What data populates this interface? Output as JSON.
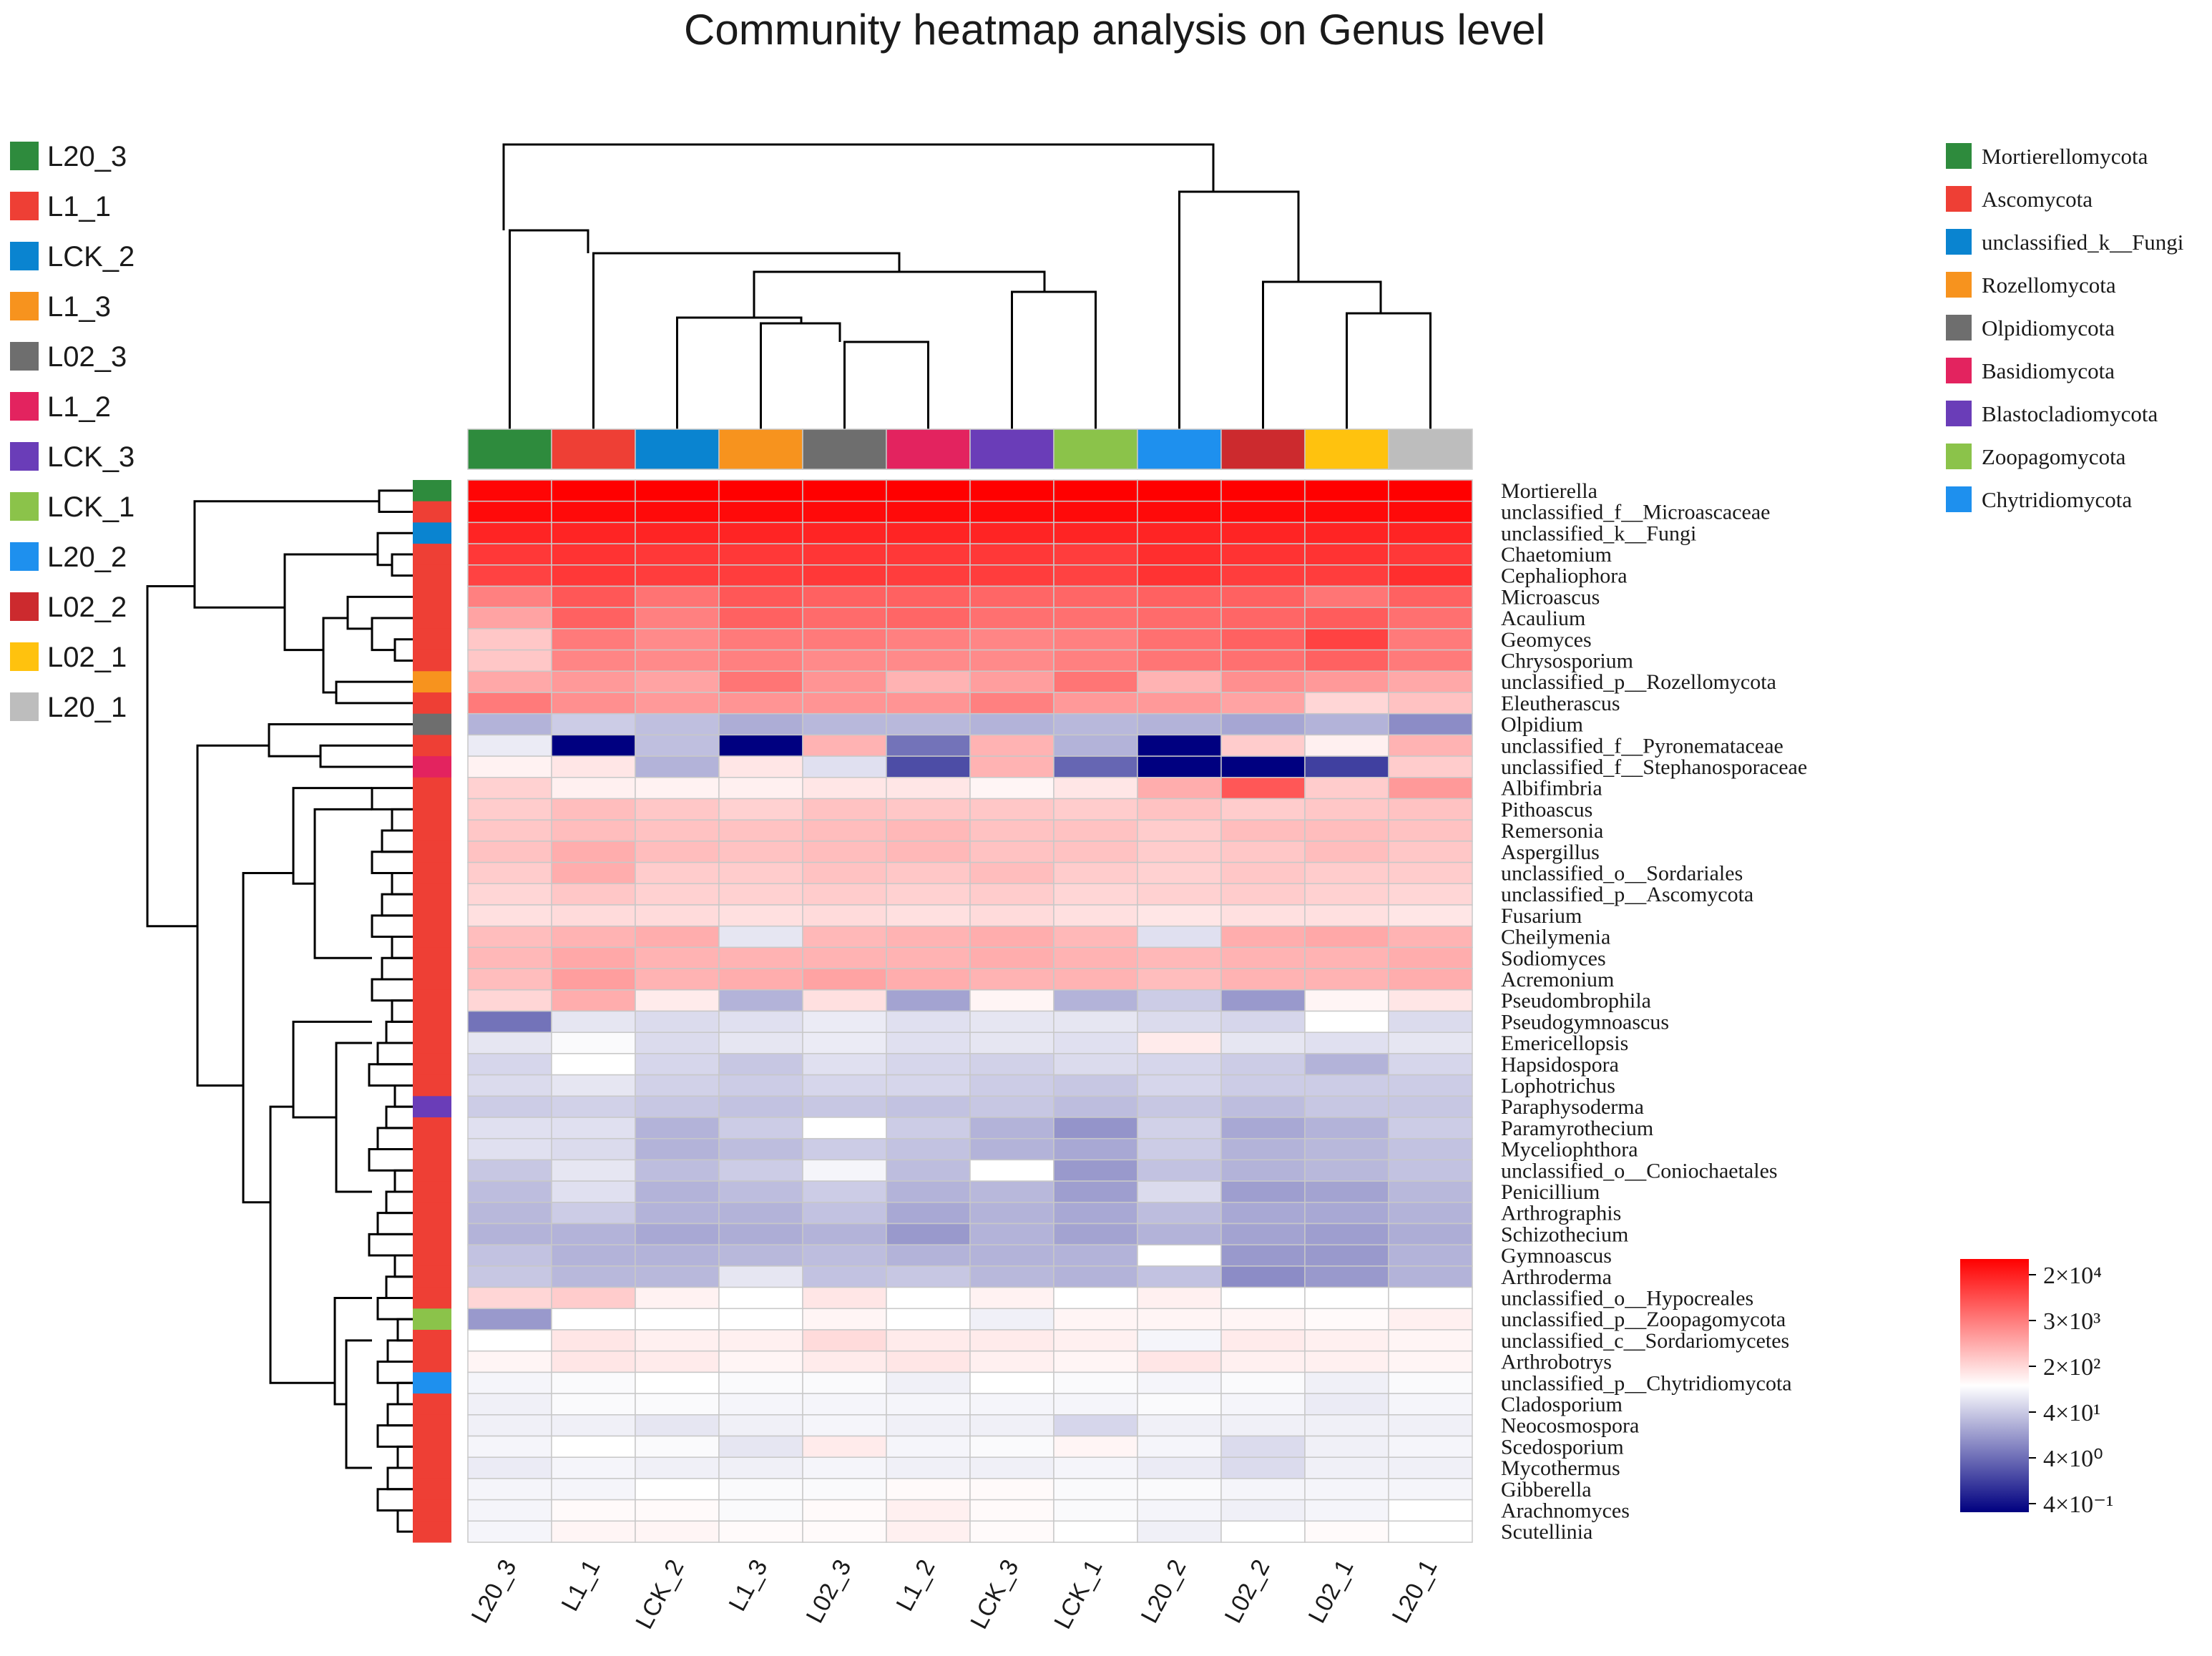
{
  "chart_data": {
    "type": "heatmap",
    "title": "Community heatmap analysis on Genus level",
    "samples": [
      "L20_3",
      "L1_1",
      "LCK_2",
      "L1_3",
      "L02_3",
      "L1_2",
      "LCK_3",
      "LCK_1",
      "L20_2",
      "L02_2",
      "L02_1",
      "L20_1"
    ],
    "sample_colors": [
      "#2e8b3d",
      "#ee3f35",
      "#0a84d0",
      "#f7931e",
      "#6e6e6e",
      "#e3235f",
      "#6a3db8",
      "#8bc34a",
      "#1e90ee",
      "#cc2a2e",
      "#ffc20e",
      "#bdbdbd"
    ],
    "sample_legend": [
      {
        "label": "L20_3",
        "color": "#2e8b3d"
      },
      {
        "label": "L1_1",
        "color": "#ee3f35"
      },
      {
        "label": "LCK_2",
        "color": "#0a84d0"
      },
      {
        "label": "L1_3",
        "color": "#f7931e"
      },
      {
        "label": "L02_3",
        "color": "#6e6e6e"
      },
      {
        "label": "L1_2",
        "color": "#e3235f"
      },
      {
        "label": "LCK_3",
        "color": "#6a3db8"
      },
      {
        "label": "LCK_1",
        "color": "#8bc34a"
      },
      {
        "label": "L20_2",
        "color": "#1e90ee"
      },
      {
        "label": "L02_2",
        "color": "#cc2a2e"
      },
      {
        "label": "L02_1",
        "color": "#ffc20e"
      },
      {
        "label": "L20_1",
        "color": "#bdbdbd"
      }
    ],
    "phylum_legend": [
      {
        "label": "Mortierellomycota",
        "color": "#2e8b3d"
      },
      {
        "label": "Ascomycota",
        "color": "#ee3f35"
      },
      {
        "label": "unclassified_k__Fungi",
        "color": "#0a84d0"
      },
      {
        "label": "Rozellomycota",
        "color": "#f7931e"
      },
      {
        "label": "Olpidiomycota",
        "color": "#6e6e6e"
      },
      {
        "label": "Basidiomycota",
        "color": "#e3235f"
      },
      {
        "label": "Blastocladiomycota",
        "color": "#6a3db8"
      },
      {
        "label": "Zoopagomycota",
        "color": "#8bc34a"
      },
      {
        "label": "Chytridiomycota",
        "color": "#1e90ee"
      }
    ],
    "color_scale": {
      "stops": [
        {
          "color": "#000080"
        },
        {
          "color": "#ffffff"
        },
        {
          "color": "#ff0000"
        }
      ],
      "labels": [
        "2×10⁴",
        "3×10³",
        "2×10²",
        "4×10¹",
        "4×10⁰",
        "4×10⁻¹"
      ]
    },
    "genera": [
      {
        "name": "Mortierella",
        "phylum": "Mortierellomycota",
        "values": [
          0.98,
          1,
          1,
          1,
          1,
          1,
          1,
          1,
          1,
          1,
          1,
          1
        ]
      },
      {
        "name": "unclassified_f__Microascaceae",
        "phylum": "Ascomycota",
        "values": [
          0.96,
          0.96,
          0.96,
          0.96,
          0.96,
          0.96,
          0.96,
          0.96,
          0.96,
          0.96,
          0.96,
          0.96
        ]
      },
      {
        "name": "unclassified_k__Fungi",
        "phylum": "unclassified_k__Fungi",
        "values": [
          0.86,
          0.86,
          0.86,
          0.86,
          0.86,
          0.86,
          0.86,
          0.86,
          0.86,
          0.86,
          0.86,
          0.86
        ]
      },
      {
        "name": "Chaetomium",
        "phylum": "Ascomycota",
        "values": [
          0.78,
          0.8,
          0.78,
          0.78,
          0.79,
          0.78,
          0.78,
          0.76,
          0.82,
          0.8,
          0.8,
          0.78
        ]
      },
      {
        "name": "Cephaliophora",
        "phylum": "Ascomycota",
        "values": [
          0.74,
          0.78,
          0.76,
          0.76,
          0.78,
          0.76,
          0.76,
          0.74,
          0.8,
          0.76,
          0.76,
          0.82
        ]
      },
      {
        "name": "Microascus",
        "phylum": "Ascomycota",
        "values": [
          0.5,
          0.66,
          0.55,
          0.66,
          0.62,
          0.62,
          0.6,
          0.6,
          0.62,
          0.62,
          0.54,
          0.62
        ]
      },
      {
        "name": "Acaulium",
        "phylum": "Ascomycota",
        "values": [
          0.36,
          0.62,
          0.5,
          0.62,
          0.58,
          0.6,
          0.56,
          0.56,
          0.58,
          0.6,
          0.64,
          0.56
        ]
      },
      {
        "name": "Geomyces",
        "phylum": "Ascomycota",
        "values": [
          0.22,
          0.52,
          0.46,
          0.52,
          0.52,
          0.5,
          0.48,
          0.5,
          0.56,
          0.62,
          0.74,
          0.52
        ]
      },
      {
        "name": "Chrysosporium",
        "phylum": "Ascomycota",
        "values": [
          0.22,
          0.48,
          0.46,
          0.5,
          0.46,
          0.46,
          0.46,
          0.5,
          0.54,
          0.56,
          0.62,
          0.52
        ]
      },
      {
        "name": "unclassified_p__Rozellomycota",
        "phylum": "Rozellomycota",
        "values": [
          0.34,
          0.4,
          0.36,
          0.54,
          0.42,
          0.3,
          0.38,
          0.54,
          0.3,
          0.44,
          0.4,
          0.34
        ]
      },
      {
        "name": "Eleutherascus",
        "phylum": "Ascomycota",
        "values": [
          0.52,
          0.44,
          0.4,
          0.42,
          0.42,
          0.42,
          0.5,
          0.4,
          0.4,
          0.36,
          0.16,
          0.24
        ]
      },
      {
        "name": "Olpidium",
        "phylum": "Olpidiomycota",
        "values": [
          -0.3,
          -0.2,
          -0.25,
          -0.32,
          -0.28,
          -0.28,
          -0.3,
          -0.28,
          -0.3,
          -0.35,
          -0.3,
          -0.45
        ]
      },
      {
        "name": "unclassified_f__Pyronemataceae",
        "phylum": "Ascomycota",
        "values": [
          -0.08,
          -1,
          -0.25,
          -1,
          0.3,
          -0.55,
          0.3,
          -0.3,
          -1,
          0.2,
          0.06,
          0.3
        ]
      },
      {
        "name": "unclassified_f__Stephanosporaceae",
        "phylum": "Basidiomycota",
        "values": [
          0.05,
          0.1,
          -0.3,
          0.1,
          -0.12,
          -0.7,
          0.3,
          -0.6,
          -1,
          -1,
          -0.75,
          0.2
        ]
      },
      {
        "name": "Albifimbria",
        "phylum": "Ascomycota",
        "values": [
          0.18,
          0.06,
          0.05,
          0.06,
          0.1,
          0.1,
          0.04,
          0.1,
          0.32,
          0.66,
          0.2,
          0.4
        ]
      },
      {
        "name": "Pithoascus",
        "phylum": "Ascomycota",
        "values": [
          0.2,
          0.26,
          0.22,
          0.18,
          0.24,
          0.22,
          0.22,
          0.2,
          0.24,
          0.2,
          0.22,
          0.24
        ]
      },
      {
        "name": "Remersonia",
        "phylum": "Ascomycota",
        "values": [
          0.22,
          0.26,
          0.24,
          0.24,
          0.26,
          0.28,
          0.24,
          0.24,
          0.2,
          0.26,
          0.26,
          0.24
        ]
      },
      {
        "name": "Aspergillus",
        "phylum": "Ascomycota",
        "values": [
          0.24,
          0.32,
          0.26,
          0.24,
          0.26,
          0.28,
          0.24,
          0.24,
          0.2,
          0.22,
          0.26,
          0.22
        ]
      },
      {
        "name": "unclassified_o__Sordariales",
        "phylum": "Ascomycota",
        "values": [
          0.2,
          0.32,
          0.2,
          0.2,
          0.24,
          0.22,
          0.26,
          0.2,
          0.18,
          0.22,
          0.2,
          0.2
        ]
      },
      {
        "name": "unclassified_p__Ascomycota",
        "phylum": "Ascomycota",
        "values": [
          0.16,
          0.22,
          0.18,
          0.18,
          0.2,
          0.18,
          0.2,
          0.16,
          0.18,
          0.2,
          0.18,
          0.16
        ]
      },
      {
        "name": "Fusarium",
        "phylum": "Ascomycota",
        "values": [
          0.12,
          0.14,
          0.14,
          0.12,
          0.14,
          0.12,
          0.14,
          0.12,
          0.1,
          0.12,
          0.12,
          0.1
        ]
      },
      {
        "name": "Cheilymenia",
        "phylum": "Ascomycota",
        "values": [
          0.26,
          0.3,
          0.32,
          -0.1,
          0.28,
          0.3,
          0.32,
          0.28,
          -0.12,
          0.32,
          0.34,
          0.3
        ]
      },
      {
        "name": "Sodiomyces",
        "phylum": "Ascomycota",
        "values": [
          0.28,
          0.34,
          0.3,
          0.3,
          0.3,
          0.3,
          0.32,
          0.3,
          0.28,
          0.3,
          0.3,
          0.32
        ]
      },
      {
        "name": "Acremonium",
        "phylum": "Ascomycota",
        "values": [
          0.26,
          0.38,
          0.3,
          0.32,
          0.36,
          0.32,
          0.3,
          0.3,
          0.26,
          0.3,
          0.3,
          0.32
        ]
      },
      {
        "name": "Pseudombrophila",
        "phylum": "Ascomycota",
        "values": [
          0.16,
          0.32,
          0.08,
          -0.3,
          0.12,
          -0.36,
          0.04,
          -0.3,
          -0.2,
          -0.4,
          0.04,
          0.1
        ]
      },
      {
        "name": "Pseudogymnoascus",
        "phylum": "Ascomycota",
        "values": [
          -0.55,
          -0.1,
          -0.14,
          -0.12,
          -0.08,
          -0.12,
          -0.1,
          -0.1,
          -0.14,
          -0.16,
          0.0,
          -0.14
        ]
      },
      {
        "name": "Emericellopsis",
        "phylum": "Ascomycota",
        "values": [
          -0.1,
          -0.02,
          -0.14,
          -0.1,
          -0.08,
          -0.12,
          -0.1,
          -0.12,
          0.08,
          -0.1,
          -0.12,
          -0.1
        ]
      },
      {
        "name": "Hapsidospora",
        "phylum": "Ascomycota",
        "values": [
          -0.16,
          0.0,
          -0.16,
          -0.22,
          -0.12,
          -0.16,
          -0.18,
          -0.14,
          -0.16,
          -0.2,
          -0.3,
          -0.16
        ]
      },
      {
        "name": "Lophotrichus",
        "phylum": "Ascomycota",
        "values": [
          -0.14,
          -0.1,
          -0.18,
          -0.2,
          -0.16,
          -0.16,
          -0.2,
          -0.22,
          -0.16,
          -0.2,
          -0.2,
          -0.2
        ]
      },
      {
        "name": "Paraphysoderma",
        "phylum": "Blastocladiomycota",
        "values": [
          -0.2,
          -0.18,
          -0.22,
          -0.24,
          -0.22,
          -0.24,
          -0.22,
          -0.26,
          -0.22,
          -0.26,
          -0.22,
          -0.22
        ]
      },
      {
        "name": "Paramyrothecium",
        "phylum": "Ascomycota",
        "values": [
          -0.12,
          -0.12,
          -0.3,
          -0.2,
          0.0,
          -0.2,
          -0.3,
          -0.42,
          -0.18,
          -0.34,
          -0.3,
          -0.2
        ]
      },
      {
        "name": "Myceliophthora",
        "phylum": "Ascomycota",
        "values": [
          -0.12,
          -0.14,
          -0.3,
          -0.26,
          -0.2,
          -0.24,
          -0.3,
          -0.34,
          -0.2,
          -0.3,
          -0.28,
          -0.24
        ]
      },
      {
        "name": "unclassified_o__Coniochaetales",
        "phylum": "Ascomycota",
        "values": [
          -0.22,
          -0.1,
          -0.26,
          -0.2,
          -0.04,
          -0.26,
          0.0,
          -0.4,
          -0.24,
          -0.3,
          -0.28,
          -0.24
        ]
      },
      {
        "name": "Penicillium",
        "phylum": "Ascomycota",
        "values": [
          -0.26,
          -0.12,
          -0.3,
          -0.26,
          -0.2,
          -0.3,
          -0.28,
          -0.38,
          -0.14,
          -0.38,
          -0.36,
          -0.28
        ]
      },
      {
        "name": "Arthrographis",
        "phylum": "Ascomycota",
        "values": [
          -0.28,
          -0.2,
          -0.3,
          -0.3,
          -0.24,
          -0.34,
          -0.3,
          -0.34,
          -0.26,
          -0.34,
          -0.34,
          -0.3
        ]
      },
      {
        "name": "Schizothecium",
        "phylum": "Ascomycota",
        "values": [
          -0.3,
          -0.3,
          -0.34,
          -0.32,
          -0.3,
          -0.4,
          -0.3,
          -0.36,
          -0.3,
          -0.36,
          -0.38,
          -0.32
        ]
      },
      {
        "name": "Gymnoascus",
        "phylum": "Ascomycota",
        "values": [
          -0.24,
          -0.3,
          -0.3,
          -0.28,
          -0.26,
          -0.3,
          -0.3,
          -0.3,
          0.0,
          -0.4,
          -0.4,
          -0.3
        ]
      },
      {
        "name": "Arthroderma",
        "phylum": "Ascomycota",
        "values": [
          -0.22,
          -0.28,
          -0.28,
          -0.1,
          -0.24,
          -0.22,
          -0.28,
          -0.3,
          -0.24,
          -0.45,
          -0.4,
          -0.3
        ]
      },
      {
        "name": "unclassified_o__Hypocreales",
        "phylum": "Ascomycota",
        "values": [
          0.16,
          0.2,
          0.05,
          0.0,
          0.1,
          0.0,
          0.05,
          0.0,
          0.06,
          0.0,
          0.0,
          0.0
        ]
      },
      {
        "name": "unclassified_p__Zoopagomycota",
        "phylum": "Zoopagomycota",
        "values": [
          -0.4,
          0.0,
          0.0,
          0.0,
          0.04,
          0.0,
          -0.06,
          0.04,
          0.04,
          0.04,
          0.02,
          0.06
        ]
      },
      {
        "name": "unclassified_c__Sordariomycetes",
        "phylum": "Ascomycota",
        "values": [
          0.0,
          0.1,
          0.06,
          0.06,
          0.14,
          0.08,
          0.08,
          0.06,
          -0.04,
          0.08,
          0.06,
          0.04
        ]
      },
      {
        "name": "Arthrobotrys",
        "phylum": "Ascomycota",
        "values": [
          0.04,
          0.1,
          0.08,
          0.04,
          0.08,
          0.1,
          0.06,
          0.04,
          0.1,
          0.06,
          0.06,
          0.04
        ]
      },
      {
        "name": "unclassified_p__Chytridiomycota",
        "phylum": "Chytridiomycota",
        "values": [
          -0.04,
          -0.02,
          0.0,
          -0.02,
          -0.02,
          -0.06,
          0.0,
          -0.02,
          -0.04,
          -0.02,
          -0.06,
          -0.02
        ]
      },
      {
        "name": "Cladosporium",
        "phylum": "Ascomycota",
        "values": [
          -0.06,
          -0.02,
          -0.02,
          -0.04,
          -0.04,
          -0.04,
          -0.04,
          -0.04,
          -0.02,
          -0.04,
          -0.08,
          -0.04
        ]
      },
      {
        "name": "Neocosmospora",
        "phylum": "Ascomycota",
        "values": [
          -0.06,
          -0.06,
          -0.1,
          -0.06,
          -0.04,
          -0.06,
          -0.06,
          -0.16,
          -0.06,
          -0.06,
          -0.06,
          -0.06
        ]
      },
      {
        "name": "Scedosporium",
        "phylum": "Ascomycota",
        "values": [
          -0.04,
          0.0,
          -0.02,
          -0.1,
          0.08,
          -0.04,
          -0.02,
          0.04,
          -0.04,
          -0.14,
          -0.06,
          -0.04
        ]
      },
      {
        "name": "Mycothermus",
        "phylum": "Ascomycota",
        "values": [
          -0.08,
          -0.04,
          -0.06,
          -0.06,
          -0.04,
          -0.06,
          -0.06,
          -0.04,
          -0.08,
          -0.14,
          -0.06,
          -0.06
        ]
      },
      {
        "name": "Gibberella",
        "phylum": "Ascomycota",
        "values": [
          -0.04,
          -0.04,
          0.0,
          -0.02,
          -0.02,
          0.02,
          0.02,
          -0.02,
          -0.02,
          -0.04,
          -0.04,
          -0.04
        ]
      },
      {
        "name": "Arachnomyces",
        "phylum": "Ascomycota",
        "values": [
          -0.04,
          0.02,
          0.02,
          -0.02,
          0.02,
          0.06,
          0.02,
          -0.02,
          -0.04,
          -0.06,
          -0.04,
          0.0
        ]
      },
      {
        "name": "Scutellinia",
        "phylum": "Ascomycota",
        "values": [
          -0.04,
          0.04,
          0.04,
          0.02,
          0.02,
          0.06,
          0.02,
          0.0,
          -0.06,
          0.0,
          0.02,
          0.0
        ]
      }
    ]
  }
}
